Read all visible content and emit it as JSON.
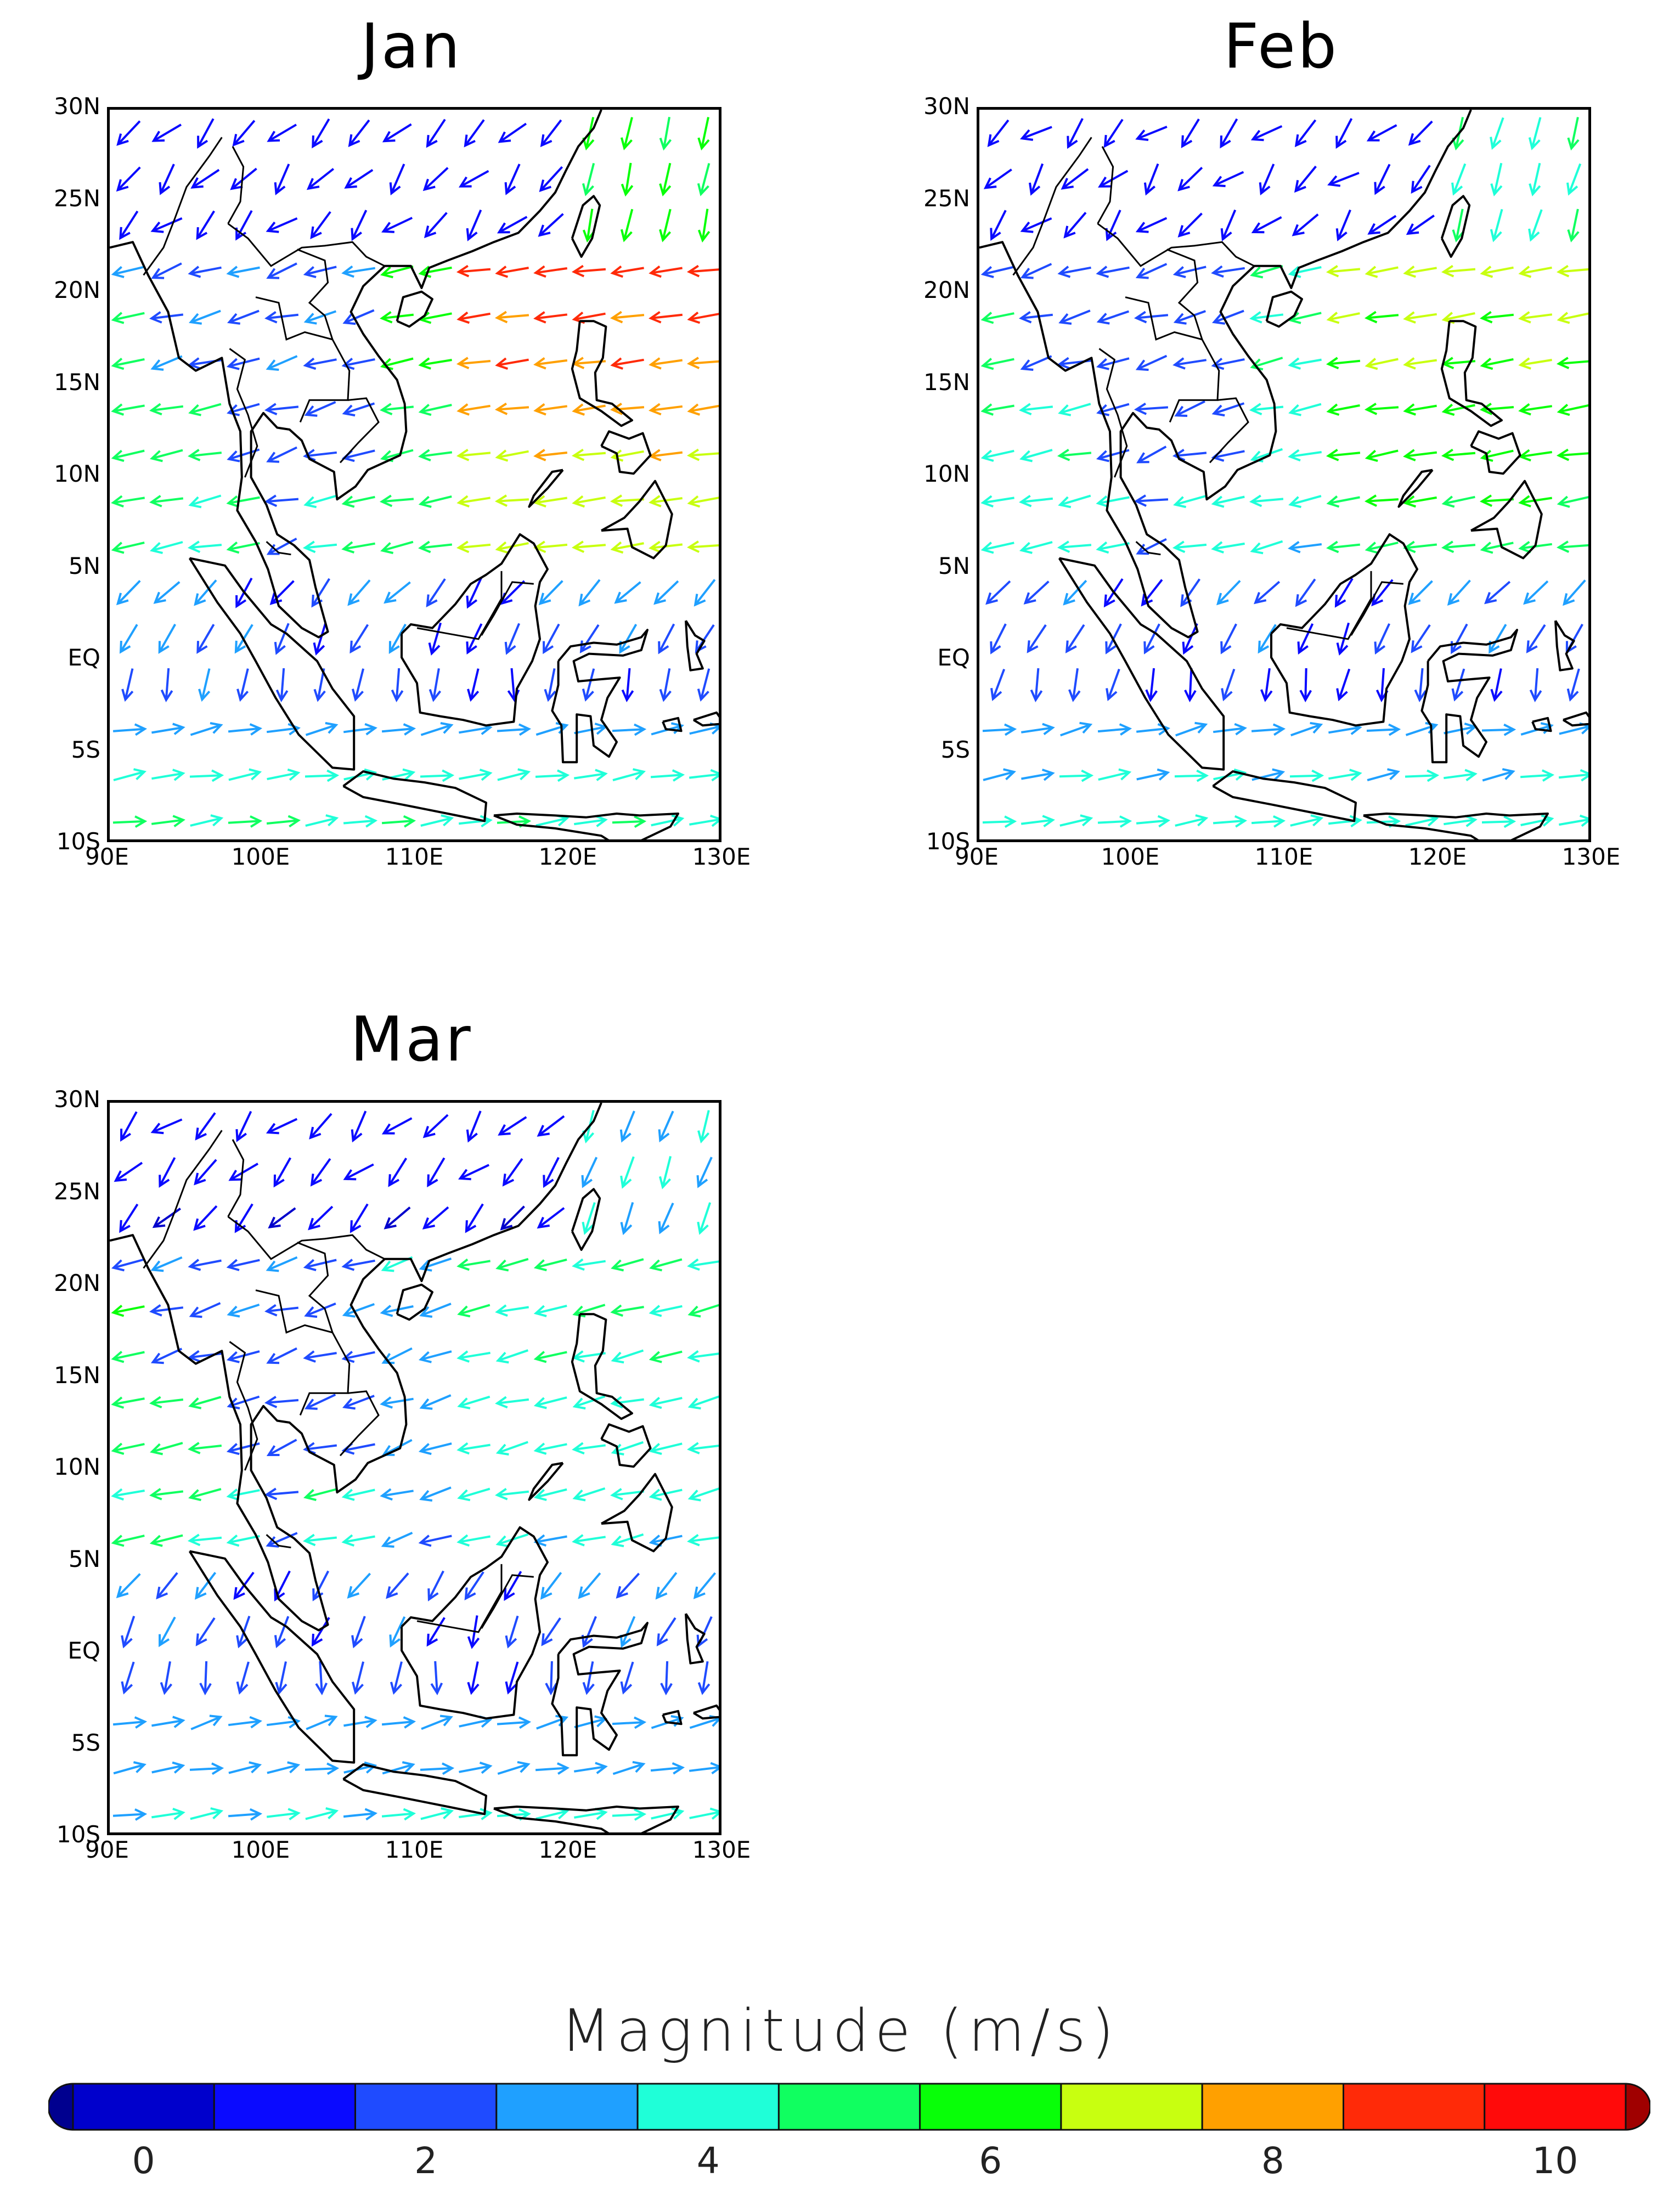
{
  "panels": [
    {
      "title": "Jan",
      "month_index": 0
    },
    {
      "title": "Feb",
      "month_index": 1
    },
    {
      "title": "Mar",
      "month_index": 2
    }
  ],
  "axes": {
    "lat_labels": [
      "30N",
      "25N",
      "20N",
      "15N",
      "10N",
      "5N",
      "EQ",
      "5S",
      "10S"
    ],
    "lon_labels": [
      "90E",
      "100E",
      "110E",
      "120E",
      "130E"
    ],
    "lat_range": [
      -10,
      30
    ],
    "lon_range": [
      90,
      130
    ]
  },
  "colorbar": {
    "title": "Magnitude (m/s)",
    "tick_labels": [
      "0",
      "2",
      "4",
      "6",
      "8",
      "10"
    ],
    "tick_values": [
      0,
      2,
      4,
      6,
      8,
      10
    ],
    "colors": [
      "#00008f",
      "#0000cc",
      "#0a0aff",
      "#1f4bff",
      "#1fa0ff",
      "#1fffd8",
      "#10ff60",
      "#08ff08",
      "#c8ff10",
      "#ffa000",
      "#ff2a08",
      "#ff0a0a",
      "#a00000"
    ],
    "range": [
      -1,
      11
    ]
  },
  "chart_data": {
    "type": "vector",
    "variable": "wind",
    "units": "m/s",
    "months": [
      "Jan",
      "Feb",
      "Mar"
    ],
    "grid": {
      "lon_start": 90,
      "lon_end": 130,
      "lat_start": -10,
      "lat_end": 30,
      "lon_step": 2.5,
      "lat_step": 2.5
    }
  }
}
